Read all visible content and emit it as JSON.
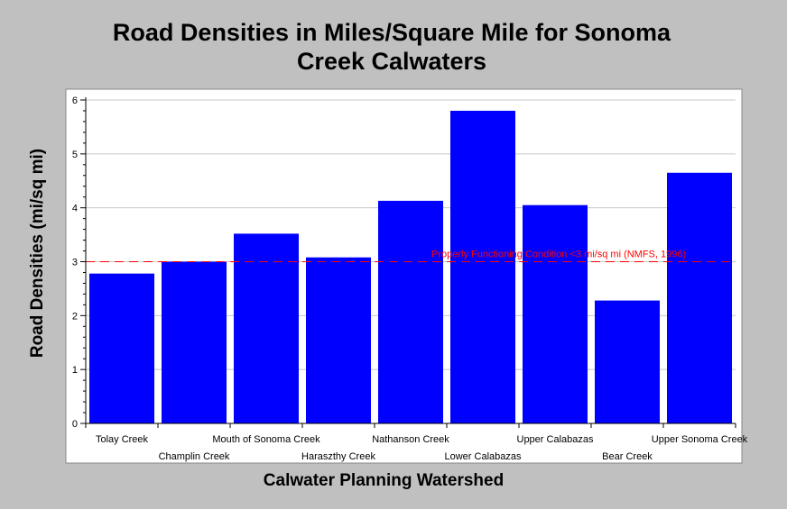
{
  "chart_data": {
    "type": "bar",
    "title_line1": "Road Densities in Miles/Square Mile for Sonoma",
    "title_line2": "Creek Calwaters",
    "xlabel": "Calwater Planning Watershed",
    "ylabel": "Road Densities (mi/sq mi)",
    "categories": [
      "Tolay Creek",
      "Champlin Creek",
      "Mouth of Sonoma Creek",
      "Haraszthy Creek",
      "Nathanson Creek",
      "Lower Calabazas",
      "Upper Calabazas",
      "Bear Creek",
      "Upper Sonoma Creek"
    ],
    "values": [
      2.78,
      3.0,
      3.52,
      3.08,
      4.13,
      5.8,
      4.05,
      2.28,
      4.65
    ],
    "ylim": [
      0,
      6
    ],
    "yticks": [
      "0",
      "1",
      "2",
      "3",
      "4",
      "5",
      "6"
    ],
    "grid": true,
    "threshold": {
      "value": 3,
      "label": "Properly Functioning Condition <3 mi/sq mi (NMFS, 1996)"
    },
    "colors": {
      "bar": "#0000ff",
      "threshold": "#ff0000",
      "grid": "#c8c8c8",
      "background": "#c0c0c0",
      "plot_background": "#ffffff"
    }
  }
}
